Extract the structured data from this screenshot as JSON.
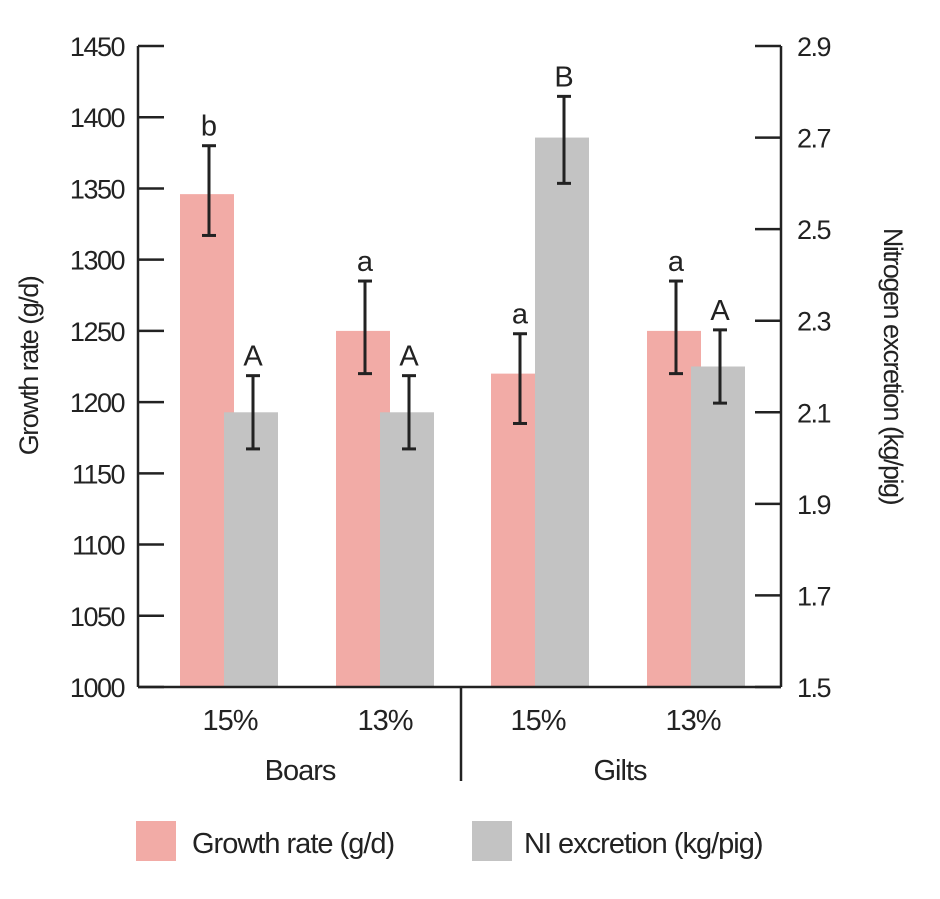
{
  "chart_data": {
    "type": "bar",
    "groups": [
      "Boars",
      "Gilts"
    ],
    "categories": [
      "15%",
      "13%",
      "15%",
      "13%"
    ],
    "category_groups": [
      "Boars",
      "Boars",
      "Gilts",
      "Gilts"
    ],
    "series": [
      {
        "name": "Growth rate (g/d)",
        "axis": "left",
        "color": "#f2aba6",
        "values": [
          1346,
          1250,
          1220,
          1250
        ],
        "error_low": [
          1317,
          1220,
          1185,
          1220
        ],
        "error_high": [
          1380,
          1285,
          1248,
          1285
        ],
        "labels": [
          "b",
          "a",
          "a",
          "a"
        ]
      },
      {
        "name": "NI excretion (kg/pig)",
        "axis": "right",
        "color": "#c3c3c3",
        "values": [
          2.1,
          2.1,
          2.7,
          2.2
        ],
        "error_low": [
          2.02,
          2.02,
          2.6,
          2.12
        ],
        "error_high": [
          2.18,
          2.18,
          2.79,
          2.28
        ],
        "labels": [
          "A",
          "A",
          "B",
          "A"
        ]
      }
    ],
    "left_axis": {
      "label": "Growth rate (g/d)",
      "range": [
        1000,
        1450
      ],
      "ticks": [
        "1000",
        "1050",
        "1100",
        "1150",
        "1200",
        "1250",
        "1300",
        "1350",
        "1400",
        "1450"
      ]
    },
    "right_axis": {
      "label": "Nitrogen excretion (kg/pig)",
      "range": [
        1.5,
        2.9
      ],
      "ticks": [
        "1.5",
        "1.7",
        "1.9",
        "2.1",
        "2.3",
        "2.5",
        "2.7",
        "2.9"
      ]
    },
    "legend": {
      "position": "bottom",
      "items": [
        "Growth rate (g/d)",
        "NI excretion (kg/pig)"
      ]
    },
    "grid": false
  }
}
